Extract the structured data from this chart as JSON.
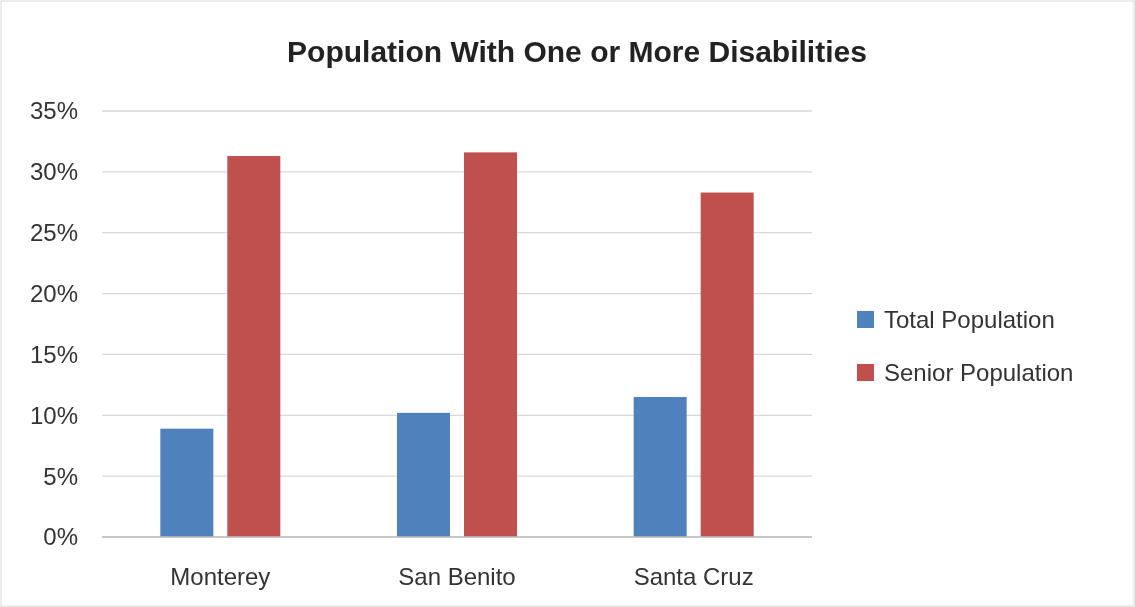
{
  "chart_data": {
    "type": "bar",
    "title": "Population With One or More Disabilities",
    "categories": [
      "Monterey",
      "San Benito",
      "Santa Cruz"
    ],
    "series": [
      {
        "name": "Total Population",
        "color": "#4f81bd",
        "values": [
          8.9,
          10.2,
          11.5
        ]
      },
      {
        "name": "Senior Population",
        "color": "#c0504d",
        "values": [
          31.3,
          31.6,
          28.3
        ]
      }
    ],
    "ylim": [
      0,
      35
    ],
    "yticks": [
      {
        "value": 0,
        "label": "0%"
      },
      {
        "value": 5,
        "label": "5%"
      },
      {
        "value": 10,
        "label": "10%"
      },
      {
        "value": 15,
        "label": "15%"
      },
      {
        "value": 20,
        "label": "20%"
      },
      {
        "value": 25,
        "label": "25%"
      },
      {
        "value": 30,
        "label": "30%"
      },
      {
        "value": 35,
        "label": "35%"
      }
    ],
    "grid": "y",
    "legend": "right"
  }
}
